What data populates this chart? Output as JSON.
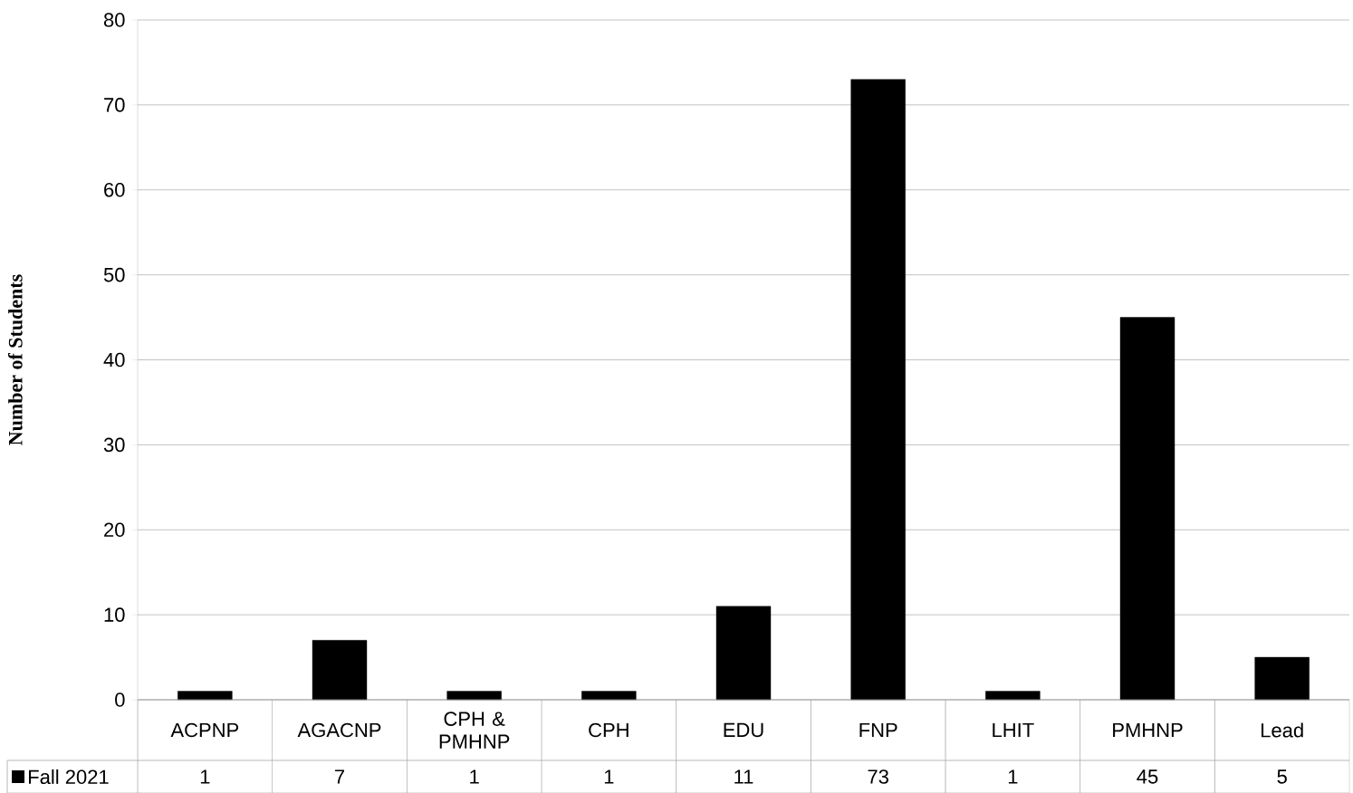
{
  "chart_data": {
    "type": "bar",
    "ylabel": "Number of Students",
    "categories": [
      "ACPNP",
      "AGACNP",
      "CPH & PMHNP",
      "CPH",
      "EDU",
      "FNP",
      "LHIT",
      "PMHNP",
      "Lead"
    ],
    "series": [
      {
        "name": "Fall 2021",
        "color": "#000000",
        "values": [
          1,
          7,
          1,
          1,
          11,
          73,
          1,
          45,
          5
        ]
      }
    ],
    "ylim": [
      0,
      80
    ],
    "yticks": [
      0,
      10,
      20,
      30,
      40,
      50,
      60,
      70,
      80
    ],
    "grid": "y",
    "legend": "bottom",
    "data_labels": true
  }
}
